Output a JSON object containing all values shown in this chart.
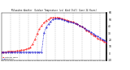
{
  "title": "Milwaukee Weather  Outdoor Temperature (vs) Wind Chill (Last 24 Hours)",
  "temp_color": "#ff0000",
  "wind_color": "#0000cc",
  "background": "#ffffff",
  "plot_bg": "#ffffff",
  "grid_color": "#999999",
  "ylim": [
    -10,
    60
  ],
  "xlim": [
    0,
    47
  ],
  "yticks": [
    -10,
    0,
    10,
    20,
    30,
    40,
    50,
    60
  ],
  "n_points": 48,
  "temp_values": [
    2,
    2,
    2,
    3,
    3,
    3,
    3,
    4,
    4,
    5,
    5,
    6,
    7,
    9,
    14,
    21,
    29,
    36,
    41,
    45,
    48,
    50,
    52,
    53,
    53,
    53,
    52,
    51,
    50,
    49,
    48,
    47,
    46,
    44,
    43,
    41,
    39,
    37,
    34,
    32,
    29,
    27,
    25,
    22,
    20,
    19,
    17,
    16
  ],
  "wind_values": [
    2,
    2,
    2,
    2,
    2,
    2,
    2,
    2,
    2,
    2,
    2,
    2,
    2,
    2,
    2,
    2,
    2,
    2,
    2,
    30,
    38,
    43,
    47,
    50,
    51,
    51,
    51,
    50,
    49,
    48,
    47,
    46,
    45,
    44,
    43,
    41,
    39,
    37,
    35,
    33,
    31,
    29,
    27,
    25,
    23,
    21,
    19,
    17
  ],
  "vgrid_positions": [
    4,
    8,
    12,
    16,
    20,
    24,
    28,
    32,
    36,
    40,
    44
  ],
  "legend_temp": "Outdoor Temp",
  "legend_wind": "Wind Chill",
  "figwidth": 1.6,
  "figheight": 0.87,
  "dpi": 100
}
